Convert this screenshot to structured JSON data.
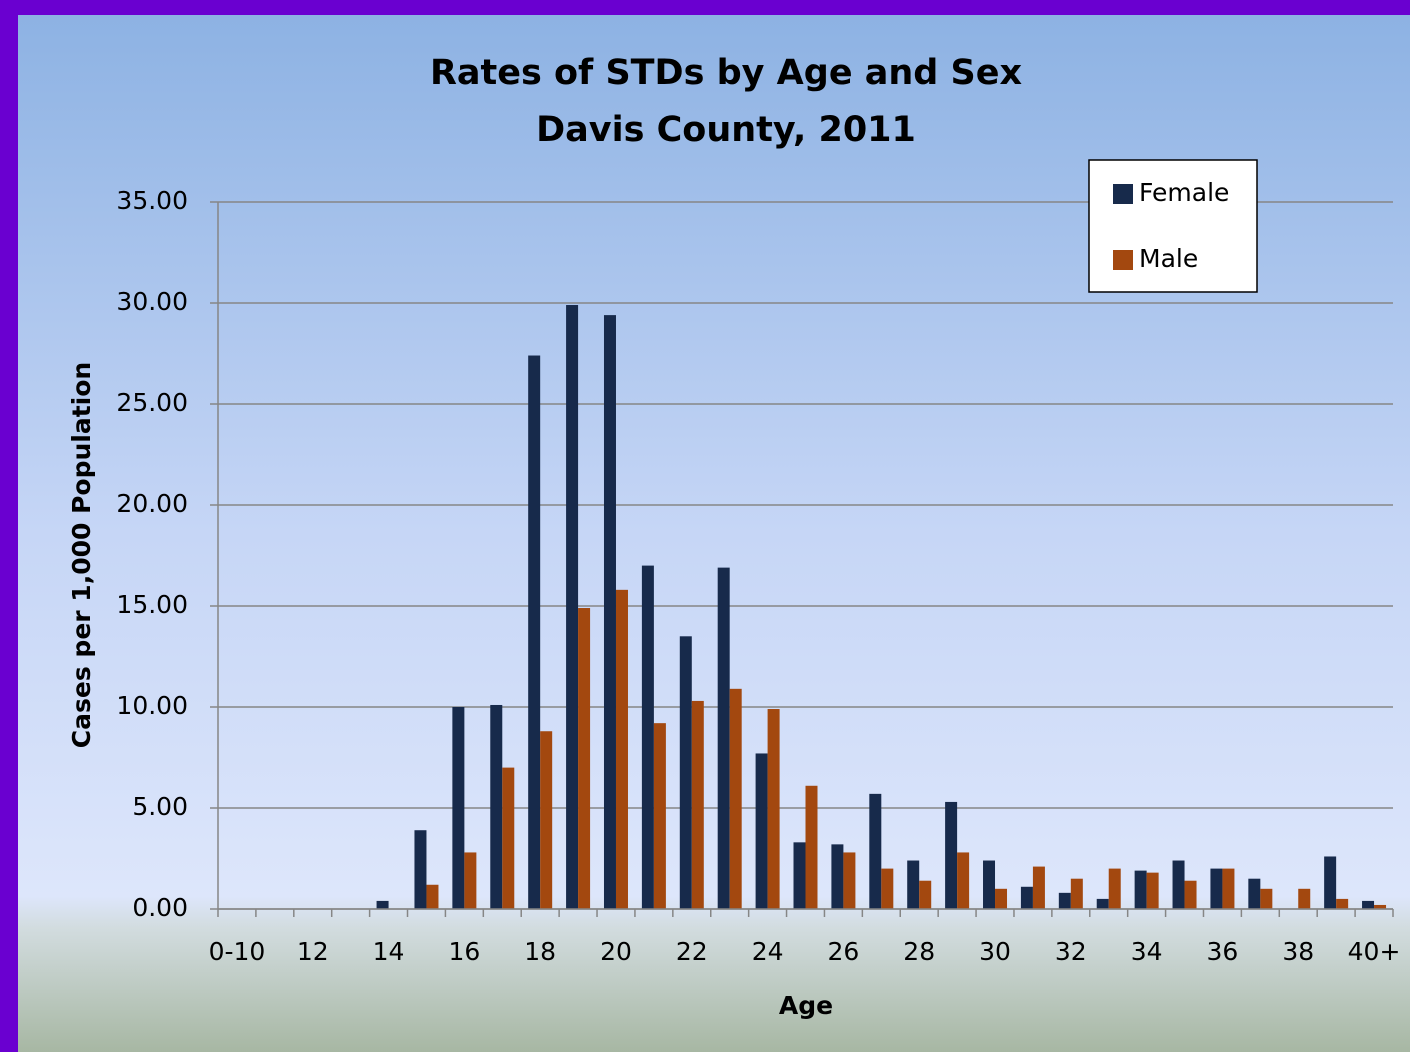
{
  "chart_data": {
    "type": "bar",
    "title": "Rates of STDs by Age and Sex",
    "subtitle": "Davis County, 2011",
    "x_label": "Age",
    "y_label": "Cases per 1,000 Population",
    "categories": [
      "0-10",
      null,
      "12",
      null,
      "14",
      null,
      "16",
      null,
      "18",
      null,
      "20",
      null,
      "22",
      null,
      "24",
      null,
      "26",
      null,
      "28",
      null,
      "30",
      null,
      "32",
      null,
      "34",
      null,
      "36",
      null,
      "38",
      null,
      "40+"
    ],
    "series": [
      {
        "name": "Female",
        "color": "#172a4b",
        "values": [
          0,
          0,
          0,
          0,
          0.4,
          3.9,
          10.0,
          10.1,
          27.4,
          29.9,
          29.4,
          17.0,
          13.5,
          16.9,
          7.7,
          3.3,
          3.2,
          5.7,
          2.4,
          5.3,
          2.4,
          1.1,
          0.8,
          0.5,
          1.9,
          2.4,
          2.0,
          1.5,
          0,
          2.6,
          0.4
        ]
      },
      {
        "name": "Male",
        "color": "#a3480f",
        "values": [
          0,
          0,
          0,
          0,
          0,
          1.2,
          2.8,
          7.0,
          8.8,
          14.9,
          15.8,
          9.2,
          10.3,
          10.9,
          9.9,
          6.1,
          2.8,
          2.0,
          1.4,
          2.8,
          1.0,
          2.1,
          1.5,
          2.0,
          1.8,
          1.4,
          2.0,
          1.0,
          1.0,
          0.5,
          0.2
        ]
      }
    ],
    "ylim": [
      0,
      35
    ],
    "yticks": [
      {
        "value": 0,
        "label": "0.00"
      },
      {
        "value": 5,
        "label": "5.00"
      },
      {
        "value": 10,
        "label": "10.00"
      },
      {
        "value": 15,
        "label": "15.00"
      },
      {
        "value": 20,
        "label": "20.00"
      },
      {
        "value": 25,
        "label": "25.00"
      },
      {
        "value": 30,
        "label": "30.00"
      },
      {
        "value": 35,
        "label": "35.00"
      }
    ],
    "grid": true,
    "legend": "upper right"
  }
}
